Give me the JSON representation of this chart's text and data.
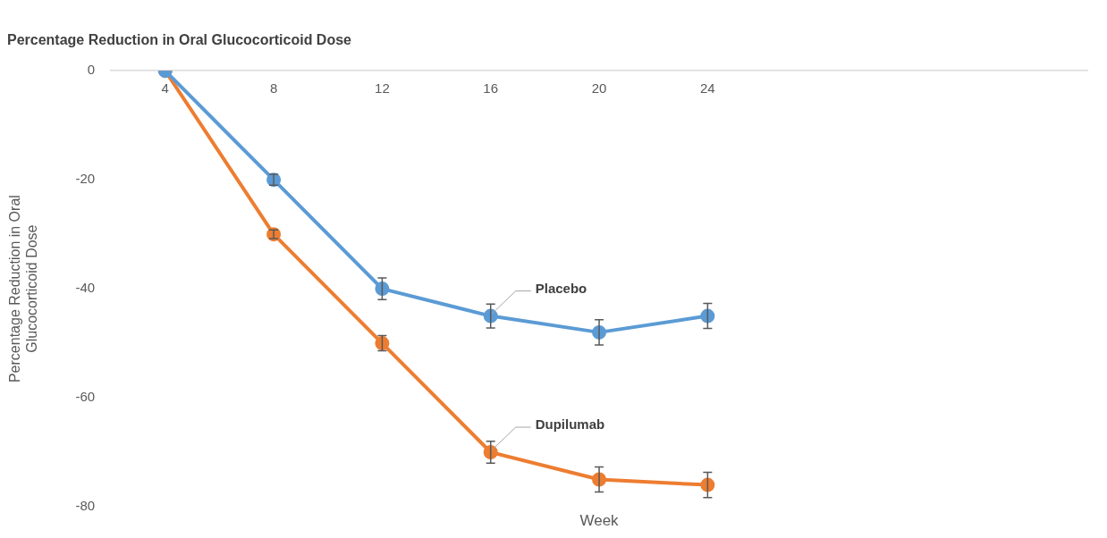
{
  "chart_data": {
    "type": "line",
    "title": "Percentage Reduction in Oral Glucocorticoid Dose",
    "xlabel": "Week",
    "ylabel": "Percentage Reduction in Oral Glucocorticoid Dose",
    "categories": [
      "4",
      "8",
      "12",
      "16",
      "20",
      "24",
      null,
      null,
      null
    ],
    "series": [
      {
        "name": "Placebo",
        "color": "#5b9bd5",
        "values": [
          0,
          -20,
          -40,
          -45,
          -48,
          -45,
          null,
          null,
          null
        ],
        "errors": [
          null,
          1,
          2,
          2.2,
          2.3,
          2.3,
          null,
          null,
          null
        ]
      },
      {
        "name": "Dupilumab",
        "color": "#ed7d31",
        "values": [
          0,
          -30,
          -50,
          -70,
          -75,
          -76,
          null,
          null,
          null
        ],
        "errors": [
          null,
          0.8,
          1.4,
          2,
          2.3,
          2.3,
          null,
          null,
          null
        ]
      }
    ],
    "ylim": [
      -80,
      0
    ],
    "yticks": [
      -80,
      -60,
      -40,
      -20,
      0
    ],
    "grid": false,
    "legend": false,
    "marker": "circle",
    "line_style": "solid"
  }
}
